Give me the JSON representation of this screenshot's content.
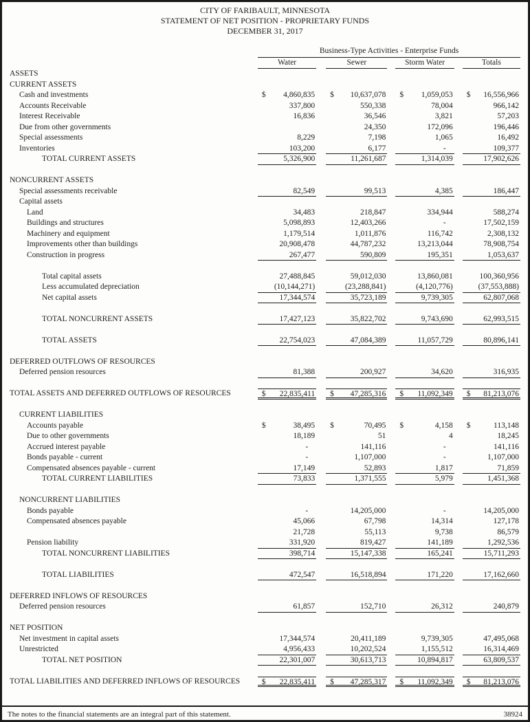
{
  "header": {
    "line1": "CITY OF FARIBAULT, MINNESOTA",
    "line2": "STATEMENT OF NET POSITION - PROPRIETARY FUNDS",
    "line3": "DECEMBER 31, 2017"
  },
  "table": {
    "group_header": "Business-Type Activities - Enterprise Funds",
    "columns": [
      "Water",
      "Sewer",
      "Storm Water",
      "Totals"
    ],
    "column_keys": [
      "water",
      "sewer",
      "storm-water",
      "totals"
    ],
    "currency": "$",
    "rows": [
      {
        "type": "section",
        "indent": 0,
        "label": "ASSETS"
      },
      {
        "type": "section",
        "indent": 0,
        "label": "CURRENT ASSETS"
      },
      {
        "type": "data",
        "indent": 1,
        "label": "Cash and investments",
        "dollar": true,
        "values": [
          "4,860,835",
          "10,637,078",
          "1,059,053",
          "16,556,966"
        ]
      },
      {
        "type": "data",
        "indent": 1,
        "label": "Accounts Receivable",
        "values": [
          "337,800",
          "550,338",
          "78,004",
          "966,142"
        ]
      },
      {
        "type": "data",
        "indent": 1,
        "label": "Interest Receivable",
        "values": [
          "16,836",
          "36,546",
          "3,821",
          "57,203"
        ]
      },
      {
        "type": "data",
        "indent": 1,
        "label": "Due from other governments",
        "values": [
          "",
          "24,350",
          "172,096",
          "196,446"
        ]
      },
      {
        "type": "data",
        "indent": 1,
        "label": "Special assessments",
        "values": [
          "8,229",
          "7,198",
          "1,065",
          "16,492"
        ]
      },
      {
        "type": "data",
        "indent": 1,
        "label": "Inventories",
        "values": [
          "103,200",
          "6,177",
          "-",
          "109,377"
        ],
        "rule": "single"
      },
      {
        "type": "data",
        "indent": 3,
        "label": "TOTAL CURRENT ASSETS",
        "values": [
          "5,326,900",
          "11,261,687",
          "1,314,039",
          "17,902,626"
        ],
        "rule": "single"
      },
      {
        "type": "spacer"
      },
      {
        "type": "section",
        "indent": 0,
        "label": "NONCURRENT ASSETS"
      },
      {
        "type": "data",
        "indent": 1,
        "label": "Special assessments receivable",
        "values": [
          "82,549",
          "99,513",
          "4,385",
          "186,447"
        ],
        "rule": "single"
      },
      {
        "type": "section",
        "indent": 1,
        "label": "Capital assets"
      },
      {
        "type": "data",
        "indent": 2,
        "label": "Land",
        "values": [
          "34,483",
          "218,847",
          "334,944",
          "588,274"
        ]
      },
      {
        "type": "data",
        "indent": 2,
        "label": "Buildings and structures",
        "values": [
          "5,098,893",
          "12,403,266",
          "-",
          "17,502,159"
        ]
      },
      {
        "type": "data",
        "indent": 2,
        "label": "Machinery and equipment",
        "values": [
          "1,179,514",
          "1,011,876",
          "116,742",
          "2,308,132"
        ]
      },
      {
        "type": "data",
        "indent": 2,
        "label": "Improvements other than buildings",
        "values": [
          "20,908,478",
          "44,787,232",
          "13,213,044",
          "78,908,754"
        ]
      },
      {
        "type": "data",
        "indent": 2,
        "label": "Construction in progress",
        "values": [
          "267,477",
          "590,809",
          "195,351",
          "1,053,637"
        ],
        "rule": "single"
      },
      {
        "type": "spacer"
      },
      {
        "type": "data",
        "indent": 3,
        "label": "Total capital assets",
        "values": [
          "27,488,845",
          "59,012,030",
          "13,860,081",
          "100,360,956"
        ]
      },
      {
        "type": "data",
        "indent": 3,
        "label": "Less accumulated depreciation",
        "values": [
          "(10,144,271)",
          "(23,288,841)",
          "(4,120,776)",
          "(37,553,888)"
        ],
        "rule": "single"
      },
      {
        "type": "data",
        "indent": 3,
        "label": "Net capital assets",
        "values": [
          "17,344,574",
          "35,723,189",
          "9,739,305",
          "62,807,068"
        ],
        "rule": "single"
      },
      {
        "type": "spacer"
      },
      {
        "type": "data",
        "indent": 3,
        "label": "TOTAL NONCURRENT ASSETS",
        "values": [
          "17,427,123",
          "35,822,702",
          "9,743,690",
          "62,993,515"
        ],
        "rule": "single"
      },
      {
        "type": "spacer"
      },
      {
        "type": "data",
        "indent": 3,
        "label": "TOTAL ASSETS",
        "values": [
          "22,754,023",
          "47,084,389",
          "11,057,729",
          "80,896,141"
        ],
        "rule": "single"
      },
      {
        "type": "spacer"
      },
      {
        "type": "section",
        "indent": 0,
        "label": "DEFERRED OUTFLOWS OF RESOURCES"
      },
      {
        "type": "data",
        "indent": 1,
        "label": "Deferred pension resources",
        "values": [
          "81,388",
          "200,927",
          "34,620",
          "316,935"
        ],
        "rule": "single"
      },
      {
        "type": "spacer"
      },
      {
        "type": "data",
        "indent": 0,
        "label": "TOTAL ASSETS AND DEFERRED OUTFLOWS OF RESOURCES",
        "dollar": true,
        "values": [
          "22,835,411",
          "47,285,316",
          "11,092,349",
          "81,213,076"
        ],
        "rule": "double",
        "topline": true
      },
      {
        "type": "spacer"
      },
      {
        "type": "section",
        "indent": 1,
        "label": "CURRENT LIABILITIES"
      },
      {
        "type": "data",
        "indent": 2,
        "label": "Accounts payable",
        "dollar": true,
        "values": [
          "38,495",
          "70,495",
          "4,158",
          "113,148"
        ]
      },
      {
        "type": "data",
        "indent": 2,
        "label": "Due to other governments",
        "values": [
          "18,189",
          "51",
          "4",
          "18,245"
        ]
      },
      {
        "type": "data",
        "indent": 2,
        "label": "Accrued interest payable",
        "values": [
          "-",
          "141,116",
          "-",
          "141,116"
        ]
      },
      {
        "type": "data",
        "indent": 2,
        "label": "Bonds payable - current",
        "values": [
          "-",
          "1,107,000",
          "-",
          "1,107,000"
        ]
      },
      {
        "type": "data",
        "indent": 2,
        "label": "Compensated absences payable - current",
        "values": [
          "17,149",
          "52,893",
          "1,817",
          "71,859"
        ],
        "rule": "single"
      },
      {
        "type": "data",
        "indent": 3,
        "label": "TOTAL CURRENT LIABILITIES",
        "values": [
          "73,833",
          "1,371,555",
          "5,979",
          "1,451,368"
        ],
        "rule": "single"
      },
      {
        "type": "spacer"
      },
      {
        "type": "section",
        "indent": 1,
        "label": "NONCURRENT LIABILITIES"
      },
      {
        "type": "data",
        "indent": 2,
        "label": "Bonds payable",
        "values": [
          "-",
          "14,205,000",
          "-",
          "14,205,000"
        ]
      },
      {
        "type": "data",
        "indent": 2,
        "label": "Compensated absences payable",
        "values": [
          "45,066",
          "67,798",
          "14,314",
          "127,178"
        ]
      },
      {
        "type": "data",
        "indent": 2,
        "label": "",
        "values": [
          "21,728",
          "55,113",
          "9,738",
          "86,579"
        ]
      },
      {
        "type": "data",
        "indent": 2,
        "label": "Pension liability",
        "values": [
          "331,920",
          "819,427",
          "141,189",
          "1,292,536"
        ],
        "rule": "single"
      },
      {
        "type": "data",
        "indent": 3,
        "label": "TOTAL NONCURRENT LIABILITIES",
        "values": [
          "398,714",
          "15,147,338",
          "165,241",
          "15,711,293"
        ],
        "rule": "single"
      },
      {
        "type": "spacer"
      },
      {
        "type": "data",
        "indent": 3,
        "label": "TOTAL LIABILITIES",
        "values": [
          "472,547",
          "16,518,894",
          "171,220",
          "17,162,660"
        ],
        "rule": "single"
      },
      {
        "type": "spacer"
      },
      {
        "type": "section",
        "indent": 0,
        "label": "DEFERRED INFLOWS OF RESOURCES"
      },
      {
        "type": "data",
        "indent": 1,
        "label": "Deferred pension resources",
        "values": [
          "61,857",
          "152,710",
          "26,312",
          "240,879"
        ],
        "rule": "single"
      },
      {
        "type": "spacer"
      },
      {
        "type": "section",
        "indent": 0,
        "label": "NET POSITION"
      },
      {
        "type": "data",
        "indent": 1,
        "label": "Net investment in capital assets",
        "values": [
          "17,344,574",
          "20,411,189",
          "9,739,305",
          "47,495,068"
        ]
      },
      {
        "type": "data",
        "indent": 1,
        "label": "Unrestricted",
        "values": [
          "4,956,433",
          "10,202,524",
          "1,155,512",
          "16,314,469"
        ],
        "rule": "single"
      },
      {
        "type": "data",
        "indent": 3,
        "label": "TOTAL NET POSITION",
        "values": [
          "22,301,007",
          "30,613,713",
          "10,894,817",
          "63,809,537"
        ],
        "rule": "single"
      },
      {
        "type": "spacer"
      },
      {
        "type": "data",
        "indent": 0,
        "label": "TOTAL LIABILITIES AND DEFERRED INFLOWS OF RESOURCES",
        "dollar": true,
        "values": [
          "22,835,411",
          "47,285,317",
          "11,092,349",
          "81,213,076"
        ],
        "rule": "double",
        "topline": true
      }
    ]
  },
  "footer": {
    "note": "The notes to the financial statements are an integral part of this statement.",
    "page_number": "38924"
  }
}
